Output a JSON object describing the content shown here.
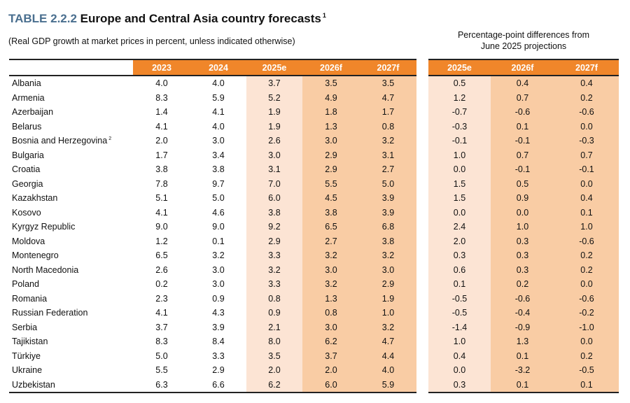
{
  "title": {
    "number": "TABLE 2.2.2",
    "text": "Europe and Central Asia country forecasts",
    "footnote": "1"
  },
  "subtitle": "(Real GDP growth at market prices in percent, unless indicated otherwise)",
  "diff_header": {
    "line1": "Percentage-point differences from",
    "line2": "June 2025 projections"
  },
  "main_columns": [
    "2023",
    "2024",
    "2025e",
    "2026f",
    "2027f"
  ],
  "diff_columns": [
    "2025e",
    "2026f",
    "2027f"
  ],
  "colors": {
    "header": "#f0862a",
    "estimate_fill": "#fce4d4",
    "forecast_fill": "#f9cca4",
    "title_number": "#4a6f8f"
  },
  "rows": [
    {
      "country": "Albania",
      "footnote": "",
      "values": [
        "4.0",
        "4.0",
        "3.7",
        "3.5",
        "3.5"
      ],
      "diffs": [
        "0.5",
        "0.4",
        "0.4"
      ]
    },
    {
      "country": "Armenia",
      "footnote": "",
      "values": [
        "8.3",
        "5.9",
        "5.2",
        "4.9",
        "4.7"
      ],
      "diffs": [
        "1.2",
        "0.7",
        "0.2"
      ]
    },
    {
      "country": "Azerbaijan",
      "footnote": "",
      "values": [
        "1.4",
        "4.1",
        "1.9",
        "1.8",
        "1.7"
      ],
      "diffs": [
        "-0.7",
        "-0.6",
        "-0.6"
      ]
    },
    {
      "country": "Belarus",
      "footnote": "",
      "values": [
        "4.1",
        "4.0",
        "1.9",
        "1.3",
        "0.8"
      ],
      "diffs": [
        "-0.3",
        "0.1",
        "0.0"
      ]
    },
    {
      "country": "Bosnia and Herzegovina",
      "footnote": "2",
      "values": [
        "2.0",
        "3.0",
        "2.6",
        "3.0",
        "3.2"
      ],
      "diffs": [
        "-0.1",
        "-0.1",
        "-0.3"
      ]
    },
    {
      "country": "Bulgaria",
      "footnote": "",
      "values": [
        "1.7",
        "3.4",
        "3.0",
        "2.9",
        "3.1"
      ],
      "diffs": [
        "1.0",
        "0.7",
        "0.7"
      ]
    },
    {
      "country": "Croatia",
      "footnote": "",
      "values": [
        "3.8",
        "3.8",
        "3.1",
        "2.9",
        "2.7"
      ],
      "diffs": [
        "0.0",
        "-0.1",
        "-0.1"
      ]
    },
    {
      "country": "Georgia",
      "footnote": "",
      "values": [
        "7.8",
        "9.7",
        "7.0",
        "5.5",
        "5.0"
      ],
      "diffs": [
        "1.5",
        "0.5",
        "0.0"
      ]
    },
    {
      "country": "Kazakhstan",
      "footnote": "",
      "values": [
        "5.1",
        "5.0",
        "6.0",
        "4.5",
        "3.9"
      ],
      "diffs": [
        "1.5",
        "0.9",
        "0.4"
      ]
    },
    {
      "country": "Kosovo",
      "footnote": "",
      "values": [
        "4.1",
        "4.6",
        "3.8",
        "3.8",
        "3.9"
      ],
      "diffs": [
        "0.0",
        "0.0",
        "0.1"
      ]
    },
    {
      "country": "Kyrgyz Republic",
      "footnote": "",
      "values": [
        "9.0",
        "9.0",
        "9.2",
        "6.5",
        "6.8"
      ],
      "diffs": [
        "2.4",
        "1.0",
        "1.0"
      ]
    },
    {
      "country": "Moldova",
      "footnote": "",
      "values": [
        "1.2",
        "0.1",
        "2.9",
        "2.7",
        "3.8"
      ],
      "diffs": [
        "2.0",
        "0.3",
        "-0.6"
      ]
    },
    {
      "country": "Montenegro",
      "footnote": "",
      "values": [
        "6.5",
        "3.2",
        "3.3",
        "3.2",
        "3.2"
      ],
      "diffs": [
        "0.3",
        "0.3",
        "0.2"
      ]
    },
    {
      "country": "North Macedonia",
      "footnote": "",
      "values": [
        "2.6",
        "3.0",
        "3.2",
        "3.0",
        "3.0"
      ],
      "diffs": [
        "0.6",
        "0.3",
        "0.2"
      ]
    },
    {
      "country": "Poland",
      "footnote": "",
      "values": [
        "0.2",
        "3.0",
        "3.3",
        "3.2",
        "2.9"
      ],
      "diffs": [
        "0.1",
        "0.2",
        "0.0"
      ]
    },
    {
      "country": "Romania",
      "footnote": "",
      "values": [
        "2.3",
        "0.9",
        "0.8",
        "1.3",
        "1.9"
      ],
      "diffs": [
        "-0.5",
        "-0.6",
        "-0.6"
      ]
    },
    {
      "country": "Russian Federation",
      "footnote": "",
      "values": [
        "4.1",
        "4.3",
        "0.9",
        "0.8",
        "1.0"
      ],
      "diffs": [
        "-0.5",
        "-0.4",
        "-0.2"
      ]
    },
    {
      "country": "Serbia",
      "footnote": "",
      "values": [
        "3.7",
        "3.9",
        "2.1",
        "3.0",
        "3.2"
      ],
      "diffs": [
        "-1.4",
        "-0.9",
        "-1.0"
      ]
    },
    {
      "country": "Tajikistan",
      "footnote": "",
      "values": [
        "8.3",
        "8.4",
        "8.0",
        "6.2",
        "4.7"
      ],
      "diffs": [
        "1.0",
        "1.3",
        "0.0"
      ]
    },
    {
      "country": "Türkiye",
      "footnote": "",
      "values": [
        "5.0",
        "3.3",
        "3.5",
        "3.7",
        "4.4"
      ],
      "diffs": [
        "0.4",
        "0.1",
        "0.2"
      ]
    },
    {
      "country": "Ukraine",
      "footnote": "",
      "values": [
        "5.5",
        "2.9",
        "2.0",
        "2.0",
        "4.0"
      ],
      "diffs": [
        "0.0",
        "-3.2",
        "-0.5"
      ]
    },
    {
      "country": "Uzbekistan",
      "footnote": "",
      "values": [
        "6.3",
        "6.6",
        "6.2",
        "6.0",
        "5.9"
      ],
      "diffs": [
        "0.3",
        "0.1",
        "0.1"
      ]
    }
  ]
}
